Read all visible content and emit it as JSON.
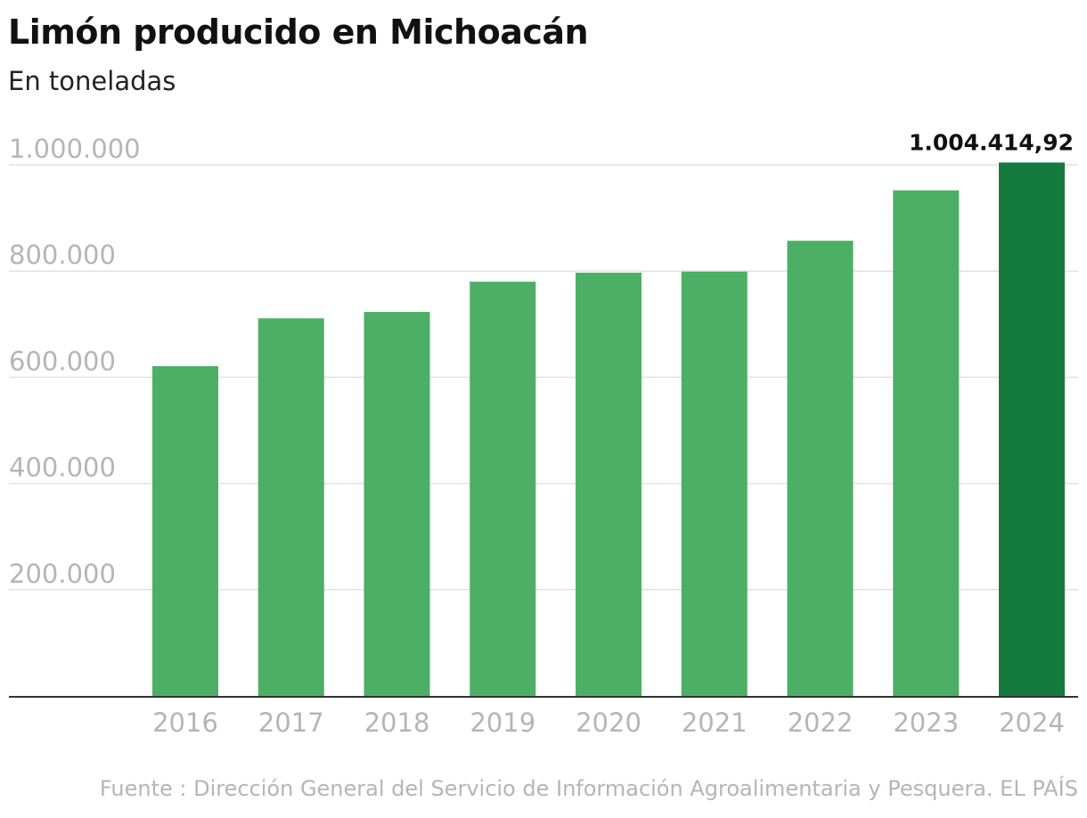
{
  "chart_data": {
    "type": "bar",
    "title": "Limón producido en Michoacán",
    "subtitle": "En toneladas",
    "categories": [
      "2016",
      "2017",
      "2018",
      "2019",
      "2020",
      "2021",
      "2022",
      "2023",
      "2024"
    ],
    "values": [
      621000,
      711000,
      723000,
      780000,
      797000,
      799000,
      857000,
      952000,
      1004414.92
    ],
    "ylim": [
      0,
      1000000
    ],
    "yticks": [
      200000,
      400000,
      600000,
      800000,
      1000000
    ],
    "ytick_labels": [
      "200.000",
      "400.000",
      "600.000",
      "800.000",
      "1.000.000"
    ],
    "highlight_index": 8,
    "highlight_label": "1.004.414,92",
    "colors": {
      "bar": "#4caf65",
      "highlight": "#157a3d",
      "grid": "#e2e2e2",
      "axis": "#333333"
    },
    "grid": true,
    "source": "Fuente : Dirección General del Servicio de Información Agroalimentaria y Pesquera. EL PAÍS"
  }
}
